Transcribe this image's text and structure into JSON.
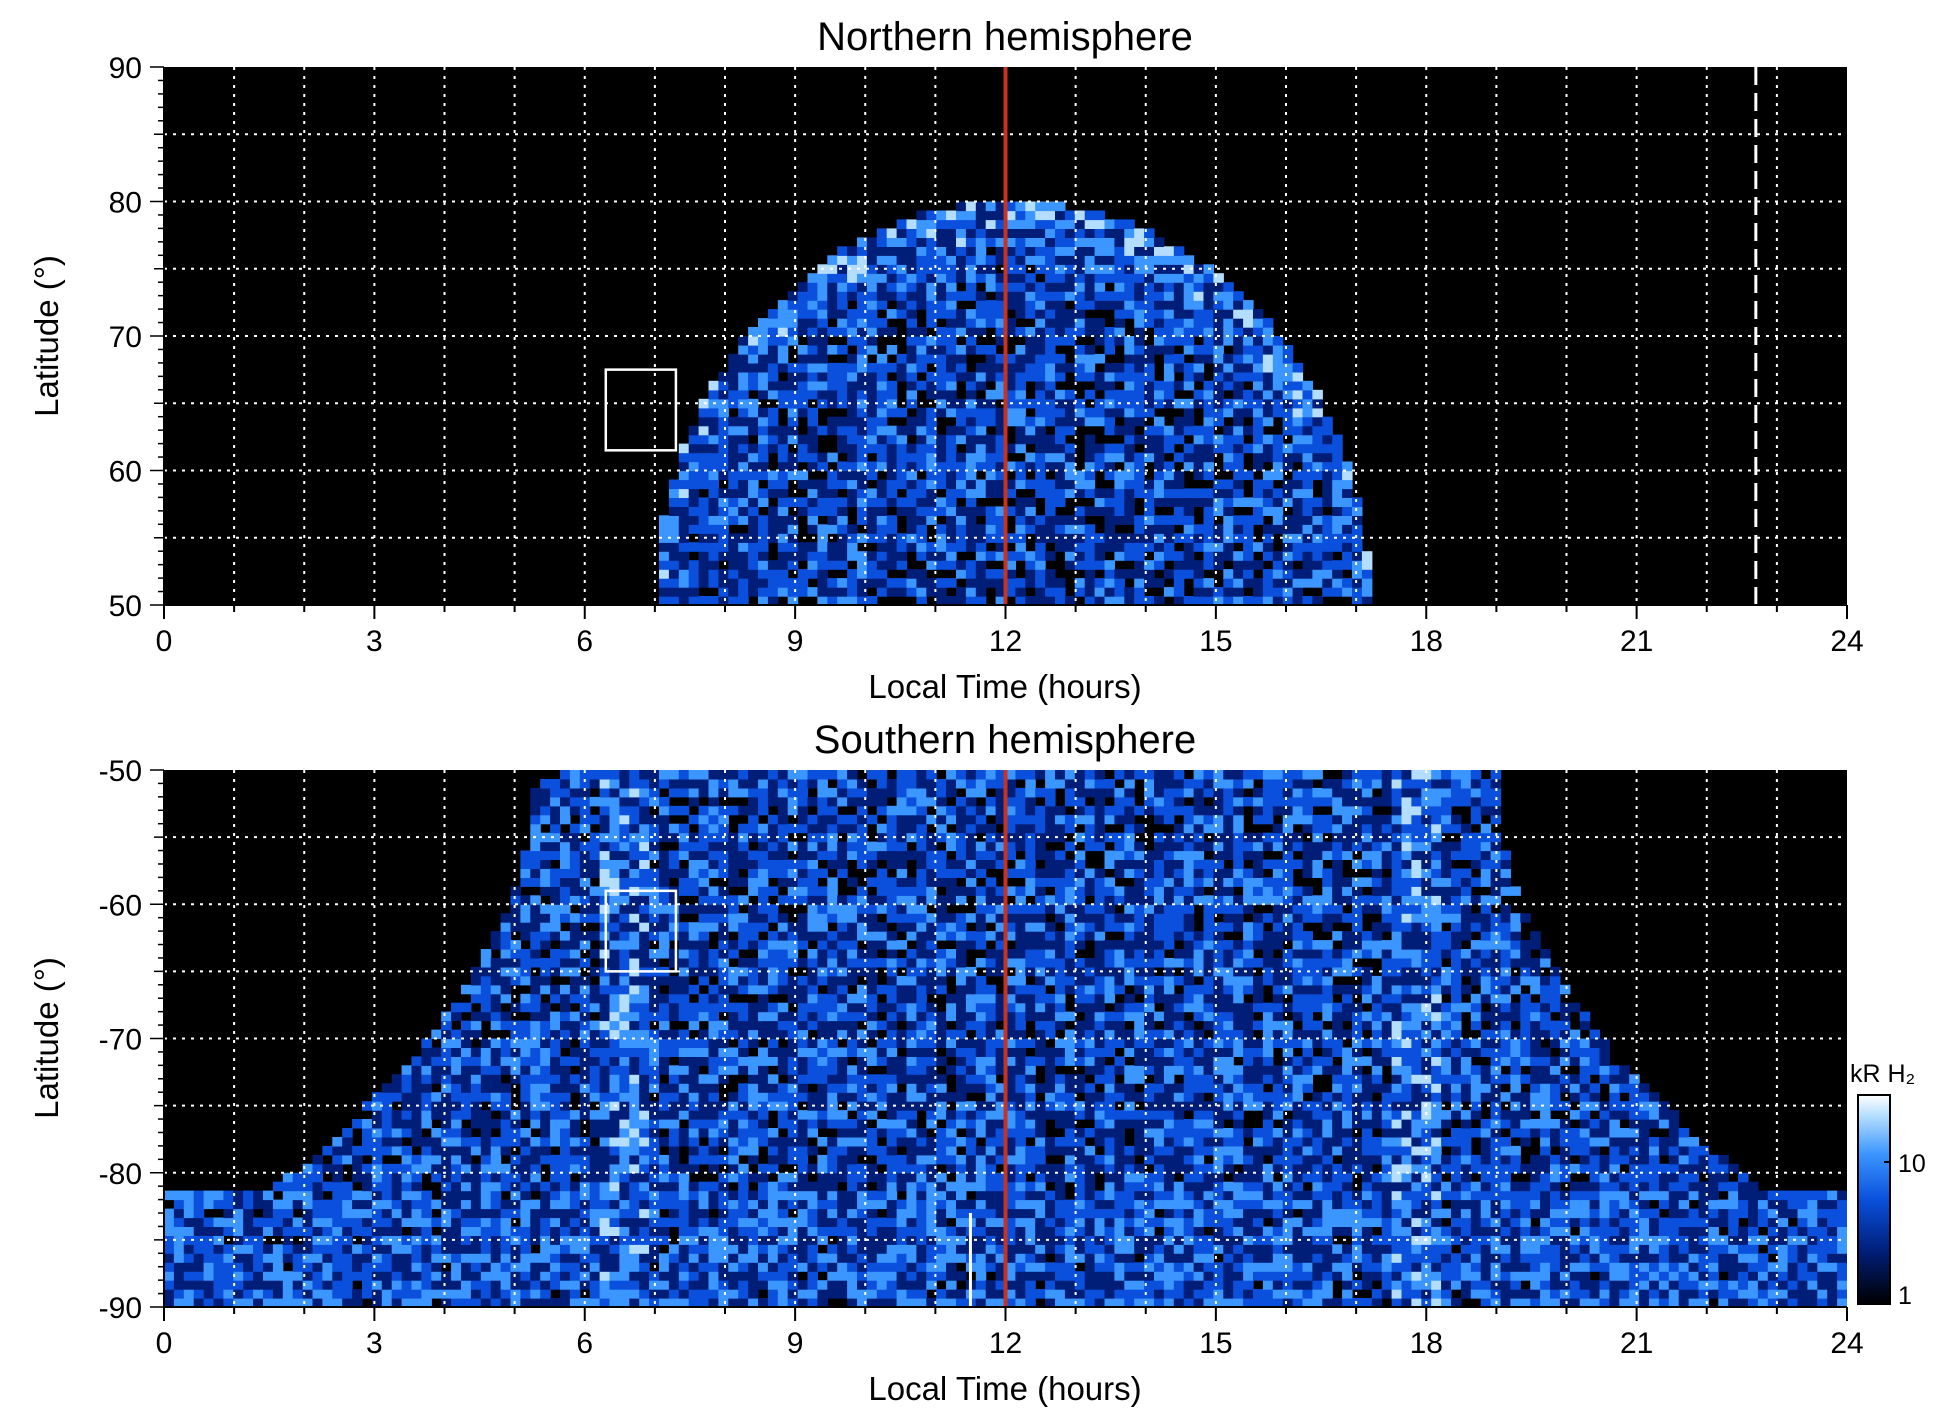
{
  "chart_data": [
    {
      "type": "heatmap",
      "title": "Northern hemisphere",
      "xlabel": "Local Time (hours)",
      "ylabel": "Latitude (°)",
      "xlim": [
        0,
        24
      ],
      "ylim": [
        50,
        90
      ],
      "x_ticks": [
        "0",
        "3",
        "6",
        "9",
        "12",
        "15",
        "18",
        "21",
        "24"
      ],
      "y_ticks": [
        "50",
        "60",
        "70",
        "80",
        "90"
      ],
      "grid": true,
      "background_color": "#000000",
      "noon_line": {
        "x": 12,
        "color": "#c8321e"
      },
      "dashed_line": {
        "x": 22.7,
        "color": "#ffffff"
      },
      "box": {
        "x": [
          6.3,
          7.3
        ],
        "y": [
          61.5,
          67.5
        ]
      },
      "emission_region": {
        "x_range": [
          7.0,
          17.2
        ],
        "apex_latitude": 80
      }
    },
    {
      "type": "heatmap",
      "title": "Southern hemisphere",
      "xlabel": "Local Time (hours)",
      "ylabel": "Latitude (°)",
      "xlim": [
        0,
        24
      ],
      "ylim": [
        -90,
        -50
      ],
      "x_ticks": [
        "0",
        "3",
        "6",
        "9",
        "12",
        "15",
        "18",
        "21",
        "24"
      ],
      "y_ticks": [
        "-90",
        "-80",
        "-70",
        "-60",
        "-50"
      ],
      "grid": true,
      "background_color": "#000000",
      "noon_line": {
        "x": 12,
        "color": "#c8321e"
      },
      "solid_line": {
        "x": 11.5,
        "color": "#ffffff"
      },
      "box": {
        "x": [
          6.3,
          7.3
        ],
        "y": [
          -65,
          -59
        ]
      },
      "emission_region": {
        "x_range": [
          5.3,
          19
        ],
        "polar_cap_below_latitude": -81
      }
    }
  ],
  "colorbar": {
    "label": "kR H₂",
    "ticks": [
      "1",
      "10"
    ],
    "colors": [
      "#000000",
      "#001e78",
      "#0a50dc",
      "#3c96ff",
      "#b4deff",
      "#ffffff"
    ]
  }
}
